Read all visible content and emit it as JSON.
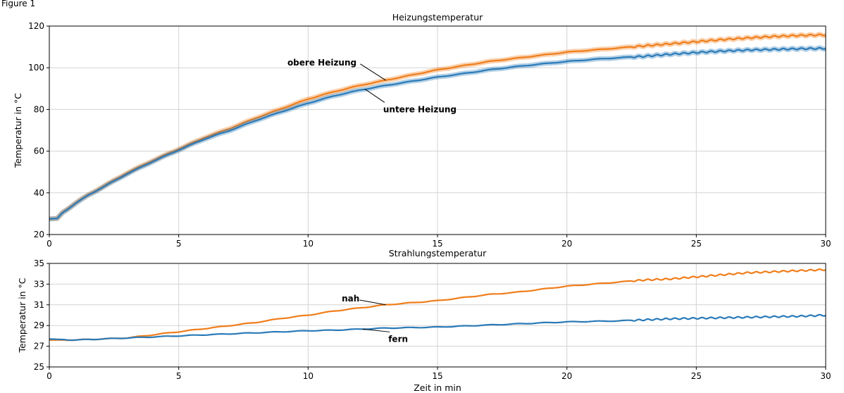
{
  "figure_label": "Figure 1",
  "colors": {
    "orange": "#f07d1a",
    "blue": "#2a7ab8",
    "grid": "#d3d3d3"
  },
  "chart_data": [
    {
      "type": "line",
      "title": "Heizungstemperatur",
      "xlabel": "",
      "ylabel": "Temperatur in °C",
      "xlim": [
        0,
        30
      ],
      "ylim": [
        20,
        120
      ],
      "xticks": [
        0,
        5,
        10,
        15,
        20,
        25,
        30
      ],
      "yticks": [
        20,
        40,
        60,
        80,
        100,
        120
      ],
      "grid": true,
      "series": [
        {
          "name": "obere Heizung",
          "color": "#f07d1a",
          "band": true,
          "x": [
            0,
            0.3,
            0.5,
            1,
            1.5,
            2,
            2.5,
            3,
            4,
            5,
            6,
            7,
            8,
            9,
            10,
            11,
            12,
            13,
            14,
            15,
            16,
            17,
            18,
            19,
            20,
            21,
            22,
            23,
            24,
            25,
            26,
            27,
            28,
            29,
            30
          ],
          "y": [
            27.5,
            27.7,
            30.5,
            35,
            39,
            42.5,
            46,
            49.5,
            55.5,
            61,
            66.5,
            71,
            76,
            80.5,
            85,
            88.5,
            91.5,
            94,
            96.5,
            99,
            101,
            103,
            104.5,
            106,
            107.5,
            108.5,
            109.5,
            110.5,
            111.5,
            112.5,
            113.5,
            114.3,
            115,
            115.5,
            115.8
          ]
        },
        {
          "name": "untere Heizung",
          "color": "#2a7ab8",
          "band": true,
          "x": [
            0,
            0.3,
            0.5,
            1,
            1.5,
            2,
            2.5,
            3,
            4,
            5,
            6,
            7,
            8,
            9,
            10,
            11,
            12,
            13,
            14,
            15,
            16,
            17,
            18,
            19,
            20,
            21,
            22,
            23,
            24,
            25,
            26,
            27,
            28,
            29,
            30
          ],
          "y": [
            27.5,
            27.7,
            30.3,
            34.8,
            38.8,
            42.2,
            45.6,
            49,
            55,
            60.5,
            65.8,
            70,
            74.8,
            79,
            83,
            86.5,
            89.3,
            91.5,
            93.5,
            95.5,
            97.2,
            99,
            100.5,
            101.8,
            103,
            104,
            104.8,
            105.5,
            106.5,
            107.3,
            108,
            108.5,
            108.8,
            109.1,
            109.3
          ]
        }
      ],
      "annotations": [
        {
          "text": "obere Heizung",
          "series": 0,
          "color": "#f07d1a",
          "at_x": 13,
          "text_x": 9.2,
          "text_y": 102.5
        },
        {
          "text": "untere Heizung",
          "series": 1,
          "color": "#2a7ab8",
          "at_x": 12.2,
          "text_x": 12.9,
          "text_y": 80
        }
      ]
    },
    {
      "type": "line",
      "title": "Strahlungstemperatur",
      "xlabel": "Zeit in min",
      "ylabel": "Temperatur in °C",
      "xlim": [
        0,
        30
      ],
      "ylim": [
        25,
        35
      ],
      "xticks": [
        0,
        5,
        10,
        15,
        20,
        25,
        30
      ],
      "yticks": [
        25,
        27,
        29,
        31,
        33,
        35
      ],
      "grid": true,
      "series": [
        {
          "name": "nah",
          "color": "#f07d1a",
          "band": false,
          "x": [
            0,
            1,
            2,
            3,
            4,
            5,
            6,
            7,
            8,
            9,
            10,
            11,
            12,
            13,
            14,
            15,
            16,
            17,
            18,
            19,
            20,
            21,
            22,
            23,
            24,
            25,
            26,
            27,
            28,
            29,
            30
          ],
          "y": [
            27.6,
            27.6,
            27.7,
            27.8,
            28.1,
            28.4,
            28.7,
            29.0,
            29.3,
            29.7,
            30.0,
            30.4,
            30.7,
            31.0,
            31.2,
            31.4,
            31.7,
            32.0,
            32.2,
            32.5,
            32.8,
            33.0,
            33.2,
            33.4,
            33.5,
            33.7,
            33.9,
            34.1,
            34.2,
            34.3,
            34.4
          ]
        },
        {
          "name": "fern",
          "color": "#2a7ab8",
          "band": false,
          "x": [
            0,
            1,
            2,
            3,
            4,
            5,
            6,
            7,
            8,
            9,
            10,
            11,
            12,
            13,
            14,
            15,
            16,
            17,
            18,
            19,
            20,
            21,
            22,
            23,
            24,
            25,
            26,
            27,
            28,
            29,
            30
          ],
          "y": [
            27.7,
            27.6,
            27.7,
            27.8,
            27.9,
            28.0,
            28.1,
            28.2,
            28.3,
            28.4,
            28.5,
            28.55,
            28.65,
            28.75,
            28.8,
            28.85,
            28.95,
            29.05,
            29.15,
            29.25,
            29.35,
            29.4,
            29.45,
            29.55,
            29.65,
            29.7,
            29.75,
            29.8,
            29.85,
            29.9,
            30.0
          ]
        }
      ],
      "annotations": [
        {
          "text": "nah",
          "series": 0,
          "color": "#f07d1a",
          "at_x": 13,
          "text_x": 11.3,
          "text_y": 31.6
        },
        {
          "text": "fern",
          "series": 1,
          "color": "#2a7ab8",
          "at_x": 12.1,
          "text_x": 13.1,
          "text_y": 27.7
        }
      ]
    }
  ]
}
